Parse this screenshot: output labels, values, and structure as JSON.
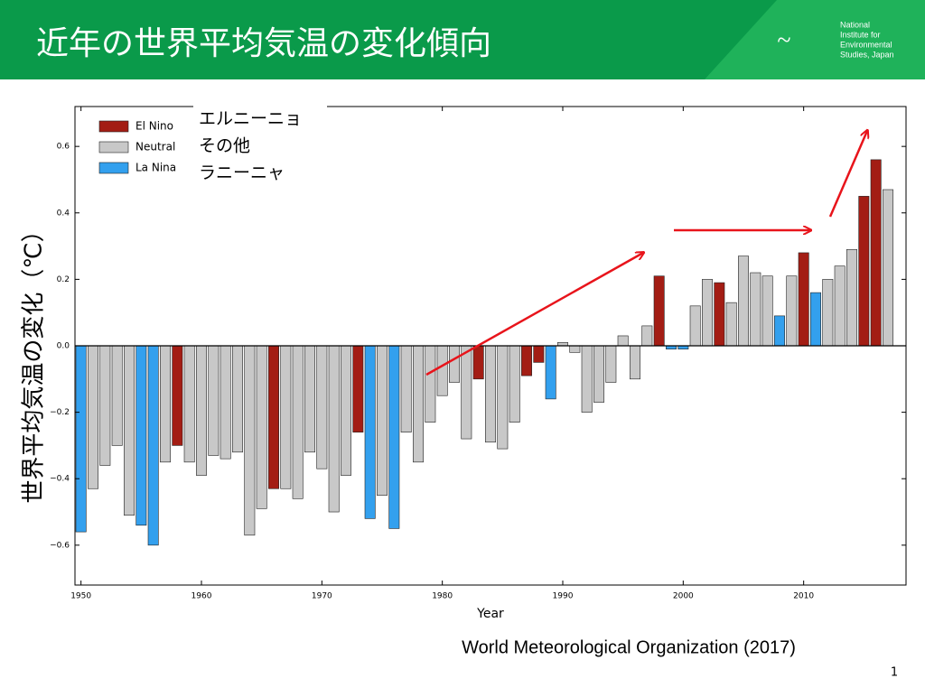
{
  "header": {
    "title": "近年の世界平均気温の変化傾向",
    "logo_text": [
      "National",
      "Institute for",
      "Environmental",
      "Studies, Japan"
    ]
  },
  "chart_data": {
    "type": "bar",
    "xlabel": "Year",
    "ylabel": "世界平均気温の変化（℃）",
    "x": [
      1950,
      1951,
      1952,
      1953,
      1954,
      1955,
      1956,
      1957,
      1958,
      1959,
      1960,
      1961,
      1962,
      1963,
      1964,
      1965,
      1966,
      1967,
      1968,
      1969,
      1970,
      1971,
      1972,
      1973,
      1974,
      1975,
      1976,
      1977,
      1978,
      1979,
      1980,
      1981,
      1982,
      1983,
      1984,
      1985,
      1986,
      1987,
      1988,
      1989,
      1990,
      1991,
      1992,
      1993,
      1994,
      1995,
      1996,
      1997,
      1998,
      1999,
      2000,
      2001,
      2002,
      2003,
      2004,
      2005,
      2006,
      2007,
      2008,
      2009,
      2010,
      2011,
      2012,
      2013,
      2014,
      2015,
      2016,
      2017
    ],
    "series": [
      {
        "name": "El Nino",
        "color": "#a31d14",
        "values": [
          null,
          null,
          null,
          null,
          null,
          null,
          null,
          null,
          -0.3,
          null,
          null,
          null,
          null,
          null,
          null,
          null,
          -0.43,
          null,
          null,
          null,
          null,
          null,
          null,
          -0.26,
          null,
          null,
          null,
          null,
          null,
          null,
          null,
          null,
          null,
          -0.1,
          null,
          null,
          null,
          -0.09,
          -0.05,
          null,
          null,
          null,
          null,
          null,
          null,
          null,
          null,
          null,
          0.21,
          null,
          null,
          null,
          null,
          0.19,
          null,
          null,
          null,
          null,
          null,
          null,
          0.28,
          null,
          null,
          null,
          null,
          0.45,
          0.56,
          null
        ]
      },
      {
        "name": "Neutral",
        "color": "#c8c8c8",
        "values": [
          null,
          -0.43,
          -0.36,
          -0.3,
          -0.51,
          null,
          null,
          -0.35,
          null,
          -0.35,
          -0.39,
          -0.33,
          -0.34,
          -0.32,
          -0.57,
          -0.49,
          null,
          -0.43,
          -0.46,
          -0.32,
          -0.37,
          -0.5,
          -0.39,
          null,
          null,
          -0.45,
          null,
          -0.26,
          -0.35,
          -0.23,
          -0.15,
          -0.11,
          -0.28,
          null,
          -0.29,
          -0.31,
          -0.23,
          null,
          null,
          null,
          0.01,
          -0.02,
          -0.2,
          -0.17,
          -0.11,
          0.03,
          -0.1,
          0.06,
          null,
          null,
          null,
          0.12,
          0.2,
          null,
          0.13,
          0.27,
          0.22,
          0.21,
          null,
          0.21,
          null,
          null,
          0.2,
          0.24,
          0.29,
          null,
          null,
          0.47
        ]
      },
      {
        "name": "La Nina",
        "color": "#33a0ee",
        "values": [
          -0.56,
          null,
          null,
          null,
          null,
          -0.54,
          -0.6,
          null,
          null,
          null,
          null,
          null,
          null,
          null,
          null,
          null,
          null,
          null,
          null,
          null,
          null,
          null,
          null,
          null,
          -0.52,
          null,
          -0.55,
          null,
          null,
          null,
          null,
          null,
          null,
          null,
          null,
          null,
          null,
          null,
          null,
          -0.16,
          null,
          null,
          null,
          null,
          null,
          null,
          null,
          null,
          null,
          -0.01,
          -0.01,
          null,
          null,
          null,
          null,
          null,
          null,
          null,
          0.09,
          null,
          null,
          0.16,
          null,
          null,
          null,
          null,
          null,
          null
        ]
      }
    ],
    "xlim": [
      1949.5,
      2018.5
    ],
    "xticks": [
      1950,
      1960,
      1970,
      1980,
      1990,
      2000,
      2010
    ],
    "ylim": [
      -0.72,
      0.72
    ],
    "yticks": [
      {
        "value": -0.6,
        "label": "−0.6"
      },
      {
        "value": -0.4,
        "label": "−0.4"
      },
      {
        "value": -0.2,
        "label": "−0.2"
      },
      {
        "value": 0,
        "label": "0.0"
      },
      0.2,
      0.4,
      0.6
    ],
    "annotations": [
      "エルニーニョ",
      "その他",
      "ラニーニャ"
    ]
  },
  "source": "World Meteorological Organization (2017)",
  "page_number": "1"
}
